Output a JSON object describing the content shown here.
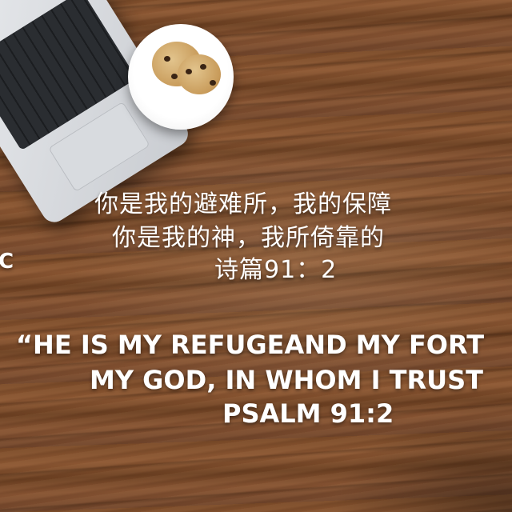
{
  "chinese_verse": {
    "line1": "你是我的避难所，我的保障",
    "line2": "你是我的神，我所倚靠的",
    "reference": "诗篇91：2"
  },
  "english_verse": {
    "line1": "“HE IS MY REFUGEAND MY FORT",
    "line2": "MY GOD, IN WHOM I TRUST",
    "reference": "PSALM 91:2"
  },
  "edge_mark": "C"
}
